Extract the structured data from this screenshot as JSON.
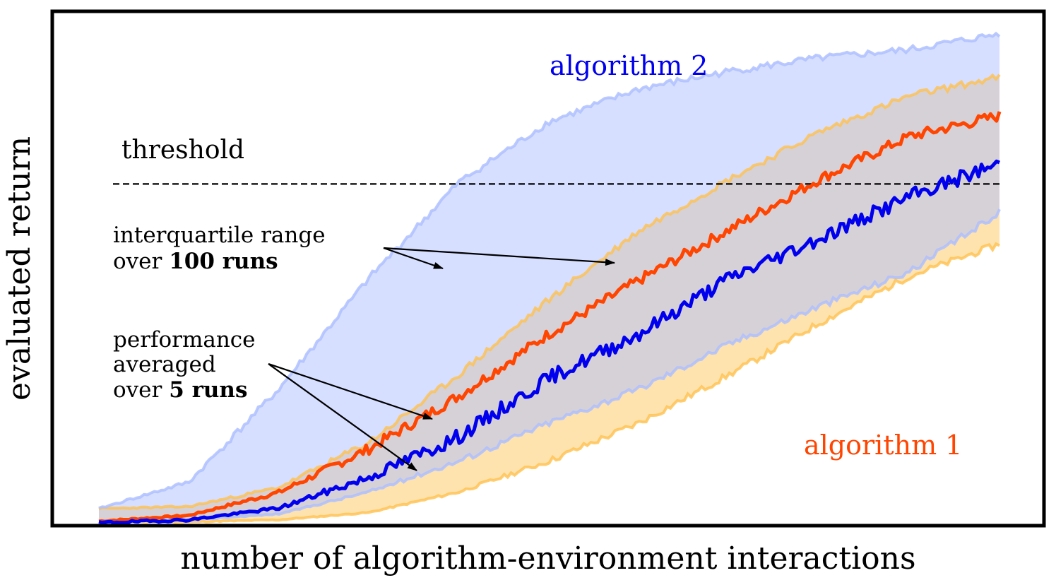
{
  "chart_data": {
    "type": "line",
    "xlabel": "number of algorithm-environment interactions",
    "ylabel": "evaluated return",
    "xlim": [
      0,
      100
    ],
    "ylim": [
      0,
      100
    ],
    "grid": false,
    "threshold": {
      "label": "threshold",
      "value": 69.4
    },
    "series": [
      {
        "name": "algorithm 1",
        "color": "#ff4500",
        "band_color": "#ffc04d",
        "x": [
          0,
          10,
          20,
          30,
          40,
          50,
          60,
          70,
          80,
          90,
          100
        ],
        "mean": [
          0.6,
          1.8,
          6.5,
          15.4,
          26.2,
          38.9,
          49.8,
          60.1,
          70.4,
          79.1,
          83.3
        ],
        "q1": [
          0.6,
          0.5,
          0.9,
          2.4,
          6.6,
          12.9,
          20.7,
          30.5,
          41.0,
          50.6,
          57.1
        ],
        "q3": [
          3.2,
          3.6,
          7.5,
          16.7,
          30.6,
          45.9,
          59.9,
          70.4,
          80.0,
          87.4,
          91.2
        ]
      },
      {
        "name": "algorithm 2",
        "color": "#0000ee",
        "band_color": "#aebfff",
        "x": [
          0,
          10,
          20,
          30,
          40,
          50,
          60,
          70,
          80,
          90,
          100
        ],
        "mean": [
          0.3,
          0.9,
          3.3,
          9.6,
          17.9,
          29.8,
          38.9,
          50.2,
          58.3,
          66.8,
          73.6
        ],
        "q1": [
          0.6,
          0.9,
          2.1,
          6.6,
          12.9,
          20.7,
          27.6,
          36.8,
          44.5,
          51.5,
          63.6
        ],
        "q3": [
          3.2,
          8.6,
          27.6,
          50.2,
          69.8,
          82.1,
          88.8,
          92.4,
          95.1,
          96.8,
          100
        ]
      }
    ],
    "annotations": {
      "algorithm_1": "algorithm 1",
      "algorithm_2": "algorithm 2",
      "iqr_line1": "interquartile range",
      "iqr_line2_prefix": "over",
      "iqr_line2_bold": "100 runs",
      "perf_line1": "performance",
      "perf_line2": "averaged",
      "perf_line3_prefix": "over",
      "perf_line3_bold": "5 runs"
    }
  }
}
